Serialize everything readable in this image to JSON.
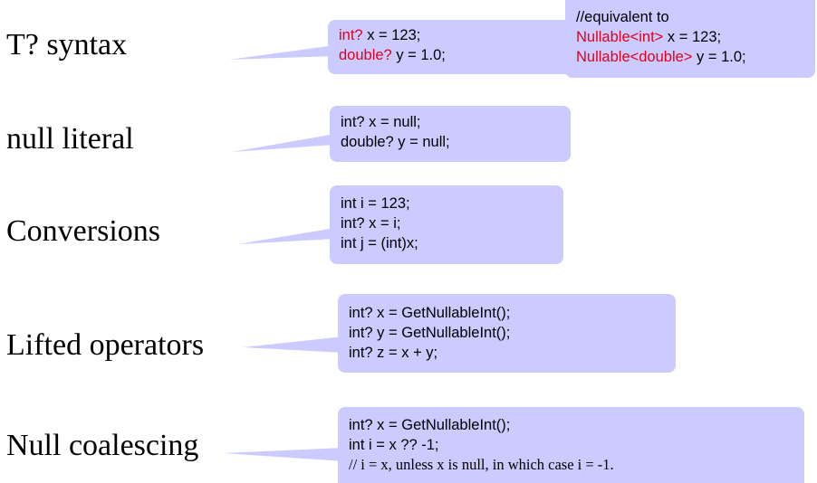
{
  "rows": [
    {
      "label": "T? syntax"
    },
    {
      "label": "null literal"
    },
    {
      "label": "Conversions"
    },
    {
      "label": "Lifted operators"
    },
    {
      "label": "Null coalescing"
    }
  ],
  "callouts": {
    "t_syntax": {
      "l1_kw": "int?",
      "l1_rest": " x = 123;",
      "l2_kw": "double?",
      "l2_rest": " y = 1.0;"
    },
    "equivalent": {
      "l1": "//equivalent to",
      "l2_kw": "Nullable<int>",
      "l2_rest": " x = 123;",
      "l3_kw": "Nullable<double>",
      "l3_rest": " y = 1.0;"
    },
    "null_literal": {
      "lines": [
        "int? x = null;",
        "double? y = null;"
      ]
    },
    "conversions": {
      "lines": [
        "int i = 123;",
        "int? x = i;",
        "int j = (int)x;"
      ]
    },
    "lifted": {
      "lines": [
        "int? x = GetNullableInt();",
        "int? y = GetNullableInt();",
        "int? z = x + y;"
      ]
    },
    "coalescing": {
      "lines": [
        "int? x = GetNullableInt();",
        "int i = x ?? -1;",
        "// i = x, unless x is null, in which case i = -1."
      ]
    }
  },
  "colors": {
    "bubble": "#cccbff",
    "keyword": "#e0001a",
    "text": "#000000"
  }
}
